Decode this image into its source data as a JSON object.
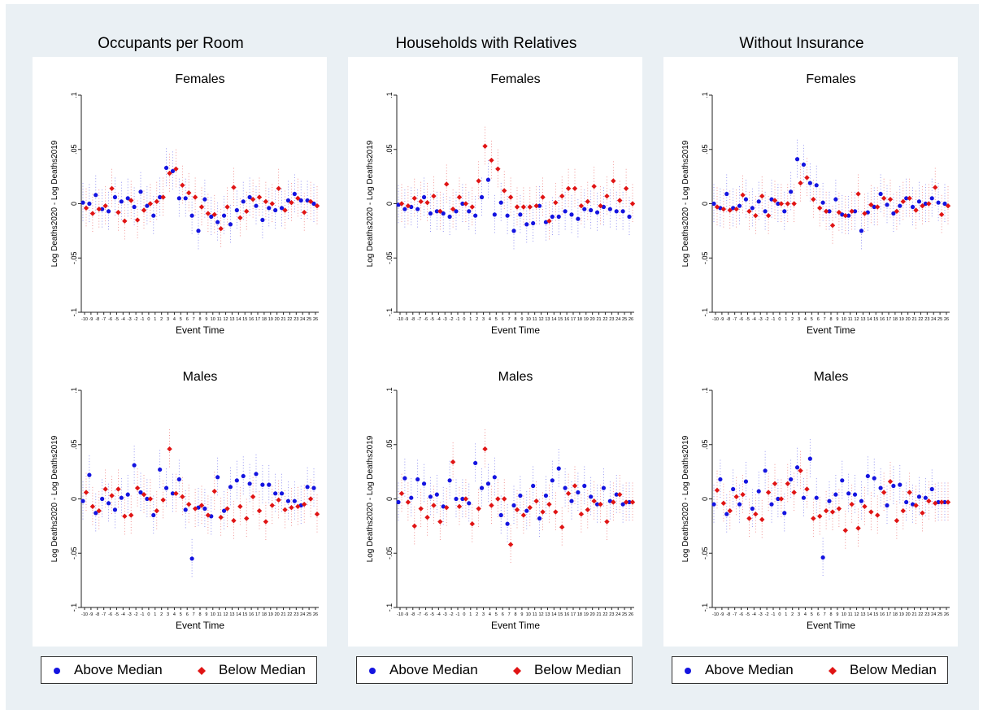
{
  "colors": {
    "above": "#1414e0",
    "below": "#e01414",
    "ci": "#aab0b8",
    "axis": "#222222"
  },
  "legend": {
    "above_label": "Above Median",
    "below_label": "Below Median"
  },
  "axes": {
    "xlabel": "Event Time",
    "ylabel": "Log Deaths2020 - Log Deaths2019",
    "ylim": [
      -0.1,
      0.1
    ],
    "yticks": [
      -0.1,
      -0.05,
      0,
      0.05,
      0.1
    ],
    "ytick_labels": [
      "-.1",
      "-.05",
      "0",
      ".05",
      ".1"
    ],
    "xticks": [
      -10,
      -9,
      -8,
      -7,
      -6,
      -5,
      -4,
      -3,
      -2,
      -1,
      0,
      1,
      2,
      3,
      4,
      5,
      6,
      7,
      8,
      9,
      10,
      11,
      12,
      13,
      14,
      15,
      16,
      17,
      18,
      19,
      20,
      21,
      22,
      23,
      24,
      25,
      26
    ],
    "xtick_labels": [
      "-10",
      "-9",
      "-8",
      "-7",
      "-6",
      "-5",
      "-4",
      "-3",
      "-2",
      "-1",
      "0",
      "1",
      "2",
      "3",
      "4",
      "5",
      "6",
      "7",
      "8",
      "9",
      "10",
      "11",
      "12",
      "13",
      "14",
      "15",
      "16",
      "17",
      "18",
      "19",
      "20",
      "21",
      "22",
      "23",
      "24",
      "25",
      "26"
    ]
  },
  "columns": [
    {
      "title": "Occupants per Room"
    },
    {
      "title": "Households with Relatives"
    },
    {
      "title": "Without Insurance"
    }
  ],
  "chart_data": [
    {
      "type": "scatter",
      "column": "Occupants per Room",
      "title": "Females",
      "x": [
        -10,
        -9,
        -8,
        -7,
        -6,
        -5,
        -4,
        -3,
        -2,
        -1,
        0,
        1,
        2,
        3,
        4,
        5,
        6,
        7,
        8,
        9,
        10,
        11,
        12,
        13,
        14,
        15,
        16,
        17,
        18,
        19,
        20,
        21,
        22,
        23,
        24,
        25,
        26
      ],
      "series": [
        {
          "name": "Above Median",
          "values": [
            0.001,
            0,
            0.008,
            -0.005,
            -0.007,
            0.006,
            0.002,
            0.005,
            -0.003,
            0.011,
            -0.002,
            -0.011,
            0.006,
            0.033,
            0.03,
            0.005,
            0.005,
            -0.011,
            -0.025,
            0.004,
            -0.012,
            -0.017,
            -0.011,
            -0.019,
            -0.006,
            0.002,
            0.006,
            -0.002,
            -0.015,
            -0.004,
            -0.006,
            -0.004,
            0.003,
            0.009,
            0.003,
            0.003,
            0
          ]
        },
        {
          "name": "Below Median",
          "values": [
            -0.004,
            -0.009,
            -0.005,
            -0.002,
            0.014,
            -0.008,
            -0.016,
            0.003,
            -0.015,
            -0.006,
            0,
            0.002,
            0.006,
            0.028,
            0.032,
            0.017,
            0.01,
            0.006,
            -0.003,
            -0.009,
            -0.01,
            -0.023,
            -0.003,
            0.015,
            -0.013,
            -0.007,
            0.004,
            0.006,
            0.002,
            0,
            0.014,
            -0.006,
            0.001,
            0.005,
            -0.008,
            0.002,
            -0.002
          ]
        }
      ]
    },
    {
      "type": "scatter",
      "column": "Occupants per Room",
      "title": "Males",
      "x": [
        -10,
        -9,
        -8,
        -7,
        -6,
        -5,
        -4,
        -3,
        -2,
        -1,
        0,
        1,
        2,
        3,
        4,
        5,
        6,
        7,
        8,
        9,
        10,
        11,
        12,
        13,
        14,
        15,
        16,
        17,
        18,
        19,
        20,
        21,
        22,
        23,
        24,
        25,
        26
      ],
      "series": [
        {
          "name": "Above Median",
          "values": [
            -0.002,
            0.022,
            -0.013,
            0,
            -0.004,
            -0.01,
            0.001,
            0.004,
            0.031,
            0.006,
            0,
            -0.015,
            0.027,
            0.01,
            0.005,
            0.018,
            -0.01,
            -0.055,
            -0.008,
            -0.009,
            -0.016,
            0.02,
            -0.011,
            0.011,
            0.017,
            0.021,
            0.014,
            0.023,
            0.013,
            0.013,
            0.005,
            0.005,
            -0.002,
            -0.002,
            -0.006,
            0.011,
            0.01
          ]
        },
        {
          "name": "Below Median",
          "values": [
            0.006,
            -0.007,
            -0.011,
            0.009,
            0.003,
            0.009,
            -0.016,
            -0.015,
            0.01,
            0.004,
            0,
            -0.011,
            -0.001,
            0.046,
            0.005,
            0.002,
            -0.005,
            -0.009,
            -0.006,
            -0.015,
            0.007,
            -0.017,
            -0.009,
            -0.02,
            -0.007,
            -0.018,
            0.002,
            -0.011,
            -0.021,
            -0.006,
            -0.001,
            -0.01,
            -0.008,
            -0.007,
            -0.005,
            0,
            -0.014
          ]
        }
      ]
    },
    {
      "type": "scatter",
      "column": "Households with Relatives",
      "title": "Females",
      "x": [
        -10,
        -9,
        -8,
        -7,
        -6,
        -5,
        -4,
        -3,
        -2,
        -1,
        0,
        1,
        2,
        3,
        4,
        5,
        6,
        7,
        8,
        9,
        10,
        11,
        12,
        13,
        14,
        15,
        16,
        17,
        18,
        19,
        20,
        21,
        22,
        23,
        24,
        25,
        26
      ],
      "series": [
        {
          "name": "Above Median",
          "values": [
            -0.001,
            -0.005,
            -0.003,
            -0.005,
            0.006,
            -0.009,
            -0.007,
            -0.009,
            -0.012,
            -0.007,
            0,
            -0.007,
            -0.011,
            0.006,
            0.022,
            -0.01,
            0.001,
            -0.011,
            -0.025,
            -0.01,
            -0.019,
            -0.018,
            -0.002,
            -0.017,
            -0.012,
            -0.012,
            -0.007,
            -0.01,
            -0.014,
            -0.005,
            -0.006,
            -0.008,
            -0.003,
            -0.005,
            -0.007,
            -0.007,
            -0.012
          ]
        },
        {
          "name": "Below Median",
          "values": [
            0,
            -0.002,
            0.005,
            0.002,
            0.001,
            0.007,
            -0.007,
            0.018,
            -0.005,
            0.006,
            0,
            -0.003,
            0.021,
            0.053,
            0.04,
            0.032,
            0.012,
            0.006,
            -0.003,
            -0.003,
            -0.003,
            -0.002,
            0.006,
            -0.016,
            0.001,
            0.007,
            0.014,
            0.014,
            -0.002,
            0.002,
            0.016,
            -0.002,
            0.007,
            0.021,
            0.003,
            0.014,
            0
          ]
        }
      ]
    },
    {
      "type": "scatter",
      "column": "Households with Relatives",
      "title": "Males",
      "x": [
        -10,
        -9,
        -8,
        -7,
        -6,
        -5,
        -4,
        -3,
        -2,
        -1,
        0,
        1,
        2,
        3,
        4,
        5,
        6,
        7,
        8,
        9,
        10,
        11,
        12,
        13,
        14,
        15,
        16,
        17,
        18,
        19,
        20,
        21,
        22,
        23,
        24,
        25,
        26
      ],
      "series": [
        {
          "name": "Above Median",
          "values": [
            -0.003,
            0.019,
            0.001,
            0.018,
            0.014,
            0.002,
            0.004,
            -0.007,
            0.017,
            0,
            0,
            -0.004,
            0.033,
            0.01,
            0.014,
            0.02,
            -0.015,
            -0.023,
            -0.006,
            0.003,
            -0.011,
            0.012,
            -0.018,
            0.003,
            0.017,
            0.028,
            0.01,
            -0.002,
            0.006,
            0.012,
            0.002,
            -0.005,
            0.01,
            -0.002,
            0.004,
            -0.005,
            -0.003
          ]
        },
        {
          "name": "Below Median",
          "values": [
            0.005,
            -0.003,
            -0.025,
            -0.009,
            -0.017,
            -0.006,
            -0.021,
            -0.008,
            0.034,
            -0.007,
            0,
            -0.023,
            -0.009,
            0.046,
            -0.006,
            0,
            0,
            -0.042,
            -0.01,
            -0.015,
            -0.008,
            -0.002,
            -0.012,
            -0.005,
            -0.012,
            -0.026,
            0.005,
            0.012,
            -0.014,
            -0.01,
            -0.002,
            -0.005,
            -0.021,
            -0.003,
            0.004,
            -0.003,
            -0.003
          ]
        }
      ]
    },
    {
      "type": "scatter",
      "column": "Without Insurance",
      "title": "Females",
      "x": [
        -10,
        -9,
        -8,
        -7,
        -6,
        -5,
        -4,
        -3,
        -2,
        -1,
        0,
        1,
        2,
        3,
        4,
        5,
        6,
        7,
        8,
        9,
        10,
        11,
        12,
        13,
        14,
        15,
        16,
        17,
        18,
        19,
        20,
        21,
        22,
        23,
        24,
        25,
        26
      ],
      "series": [
        {
          "name": "Above Median",
          "values": [
            0,
            -0.004,
            0.009,
            -0.004,
            -0.002,
            0.004,
            -0.004,
            0.002,
            -0.007,
            0.004,
            0,
            -0.007,
            0.011,
            0.041,
            0.036,
            0.019,
            0.017,
            0.001,
            -0.007,
            0.004,
            -0.01,
            -0.011,
            -0.007,
            -0.025,
            -0.008,
            -0.003,
            0.009,
            -0.001,
            -0.009,
            -0.002,
            0.005,
            -0.003,
            0.002,
            0,
            0.005,
            0.001,
            0
          ]
        },
        {
          "name": "Below Median",
          "values": [
            -0.003,
            -0.005,
            -0.006,
            -0.005,
            0.008,
            -0.007,
            -0.011,
            0.007,
            -0.011,
            0.003,
            0,
            0,
            0,
            0.019,
            0.024,
            0.004,
            -0.004,
            -0.007,
            -0.02,
            -0.008,
            -0.011,
            -0.007,
            0.009,
            -0.009,
            -0.001,
            -0.003,
            0.005,
            0.004,
            -0.007,
            0.002,
            0.005,
            -0.006,
            -0.002,
            0,
            0.015,
            -0.01,
            -0.002
          ]
        }
      ]
    },
    {
      "type": "scatter",
      "column": "Without Insurance",
      "title": "Males",
      "x": [
        -10,
        -9,
        -8,
        -7,
        -6,
        -5,
        -4,
        -3,
        -2,
        -1,
        0,
        1,
        2,
        3,
        4,
        5,
        6,
        7,
        8,
        9,
        10,
        11,
        12,
        13,
        14,
        15,
        16,
        17,
        18,
        19,
        20,
        21,
        22,
        23,
        24,
        25,
        26
      ],
      "series": [
        {
          "name": "Above Median",
          "values": [
            -0.005,
            0.018,
            -0.014,
            0.009,
            -0.005,
            0.016,
            -0.009,
            0.007,
            0.026,
            -0.005,
            0,
            -0.013,
            0.018,
            0.029,
            0.001,
            0.037,
            0.001,
            -0.054,
            -0.002,
            0.004,
            0.017,
            0.005,
            0.004,
            -0.002,
            0.021,
            0.019,
            0.01,
            -0.006,
            0.012,
            0.013,
            -0.003,
            -0.005,
            0.002,
            0.001,
            0.009,
            -0.003,
            -0.003
          ]
        },
        {
          "name": "Below Median",
          "values": [
            0.008,
            -0.004,
            -0.011,
            0.002,
            0.004,
            -0.018,
            -0.014,
            -0.019,
            0.006,
            0.014,
            0,
            0.014,
            0.006,
            0.026,
            0.009,
            -0.018,
            -0.016,
            -0.011,
            -0.012,
            -0.009,
            -0.029,
            -0.005,
            -0.027,
            -0.007,
            -0.012,
            -0.015,
            0.006,
            0.016,
            -0.02,
            -0.011,
            0.006,
            -0.006,
            -0.013,
            -0.002,
            -0.004,
            -0.003,
            -0.003
          ]
        }
      ]
    }
  ]
}
